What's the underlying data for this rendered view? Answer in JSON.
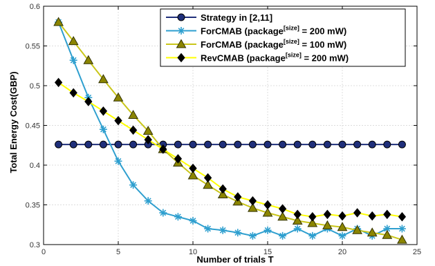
{
  "chart_data": {
    "type": "line",
    "xlabel": "Number of trials T",
    "ylabel": "Total Energy Cost(GBP)",
    "xlim": [
      0,
      25
    ],
    "ylim": [
      0.3,
      0.6
    ],
    "xticks": [
      0,
      5,
      10,
      15,
      20,
      25
    ],
    "yticks": [
      0.3,
      0.35,
      0.4,
      0.45,
      0.5,
      0.55,
      0.6
    ],
    "xtick_labels": [
      "0",
      "5",
      "10",
      "15",
      "20",
      "25"
    ],
    "ytick_labels": [
      "0.3",
      "0.35",
      "0.4",
      "0.45",
      "0.5",
      "0.55",
      "0.6"
    ],
    "grid": true,
    "legend_position": "top-right",
    "x": [
      1,
      2,
      3,
      4,
      5,
      6,
      7,
      8,
      9,
      10,
      11,
      12,
      13,
      14,
      15,
      16,
      17,
      18,
      19,
      20,
      21,
      22,
      23,
      24
    ],
    "series": [
      {
        "name": "Strategy in [2,11]",
        "label_main": "Strategy in [2,11]",
        "label_sup": "",
        "label_tail": "",
        "color": "#1f2f7a",
        "marker_fill": "#1f2f7a",
        "marker": "circle",
        "values": [
          0.426,
          0.426,
          0.426,
          0.426,
          0.426,
          0.426,
          0.426,
          0.426,
          0.426,
          0.426,
          0.426,
          0.426,
          0.426,
          0.426,
          0.426,
          0.426,
          0.426,
          0.426,
          0.426,
          0.426,
          0.426,
          0.426,
          0.426,
          0.426
        ]
      },
      {
        "name": "ForCMAB (package[size] = 200 mW)",
        "label_main": "ForCMAB (package",
        "label_sup": "[size]",
        "label_tail": " = 200 mW)",
        "color": "#2e9fcf",
        "marker_fill": "#2e9fcf",
        "marker": "star",
        "values": [
          0.58,
          0.532,
          0.485,
          0.445,
          0.405,
          0.375,
          0.355,
          0.34,
          0.335,
          0.33,
          0.32,
          0.318,
          0.315,
          0.311,
          0.318,
          0.311,
          0.32,
          0.311,
          0.32,
          0.311,
          0.32,
          0.311,
          0.32,
          0.32
        ]
      },
      {
        "name": "ForCMAB (package[size] = 100 mW)",
        "label_main": "ForCMAB (package",
        "label_sup": "[size]",
        "label_tail": " = 100 mW)",
        "color": "#c9c61a",
        "marker_fill": "#8b8500",
        "marker": "triangle",
        "values": [
          0.58,
          0.556,
          0.532,
          0.508,
          0.485,
          0.463,
          0.443,
          0.42,
          0.403,
          0.387,
          0.375,
          0.363,
          0.354,
          0.346,
          0.34,
          0.335,
          0.33,
          0.327,
          0.324,
          0.322,
          0.318,
          0.315,
          0.312,
          0.306
        ]
      },
      {
        "name": "RevCMAB (package[size] = 200 mW)",
        "label_main": "RevCMAB (package",
        "label_sup": "[size]",
        "label_tail": " = 200 mW)",
        "color": "#ffff00",
        "marker_fill": "#000000",
        "marker": "diamond",
        "values": [
          0.504,
          0.491,
          0.48,
          0.468,
          0.456,
          0.444,
          0.432,
          0.42,
          0.408,
          0.396,
          0.384,
          0.37,
          0.36,
          0.355,
          0.35,
          0.345,
          0.338,
          0.335,
          0.338,
          0.336,
          0.34,
          0.336,
          0.338,
          0.335
        ]
      }
    ]
  }
}
